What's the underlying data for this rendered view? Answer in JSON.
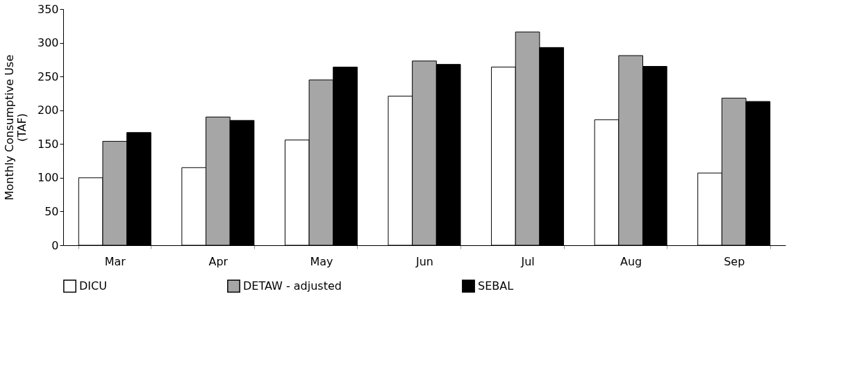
{
  "chart_data": {
    "type": "bar",
    "ylabel": "Monthly Consumptive Use\n(TAF)",
    "categories": [
      "Mar",
      "Apr",
      "May",
      "Jun",
      "Jul",
      "Aug",
      "Sep"
    ],
    "series": [
      {
        "name": "DICU",
        "color": "#ffffff",
        "values": [
          100,
          115,
          156,
          221,
          264,
          186,
          107
        ]
      },
      {
        "name": "DETAW - adjusted",
        "color": "#a6a6a6",
        "values": [
          154,
          190,
          245,
          273,
          316,
          281,
          218
        ]
      },
      {
        "name": "SEBAL",
        "color": "#000000",
        "values": [
          167,
          185,
          264,
          268,
          293,
          265,
          213
        ]
      }
    ],
    "ylim": [
      0,
      350
    ],
    "yticks": [
      0,
      50,
      100,
      150,
      200,
      250,
      300,
      350
    ],
    "grid": false,
    "legend": "bottom"
  }
}
